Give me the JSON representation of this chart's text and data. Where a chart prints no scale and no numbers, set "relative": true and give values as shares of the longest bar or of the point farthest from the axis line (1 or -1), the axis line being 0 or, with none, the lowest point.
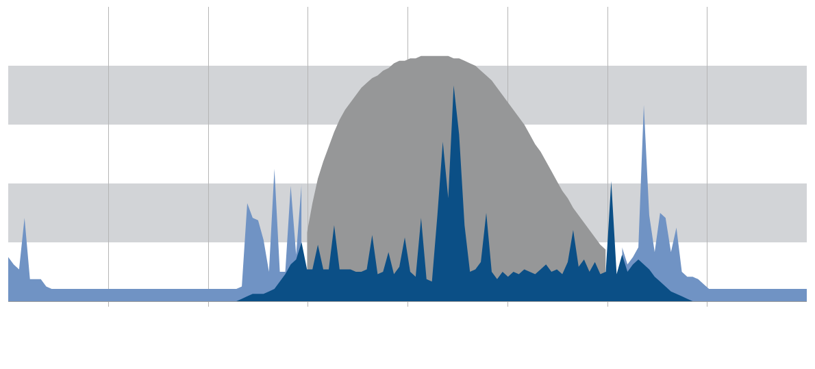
{
  "chart_data": {
    "type": "area",
    "relative": true,
    "grid": true,
    "categories": [
      null,
      null,
      null,
      null,
      null,
      null,
      null,
      null,
      null,
      null,
      null,
      null,
      null,
      null,
      null,
      null,
      null,
      null,
      null,
      null,
      null,
      null,
      null,
      null,
      null,
      null,
      null,
      null,
      null,
      null,
      null,
      null,
      null,
      null,
      null,
      null,
      null,
      null,
      null,
      null,
      null,
      null,
      null,
      null,
      null,
      null,
      null,
      null,
      null,
      null,
      null,
      null,
      null,
      null,
      null,
      null,
      null,
      null,
      null,
      null,
      null,
      null,
      null,
      null,
      null,
      null,
      null,
      null,
      null,
      null,
      null,
      null,
      null,
      null,
      null,
      null,
      null,
      null,
      null,
      null,
      null,
      null,
      null,
      null,
      null,
      null,
      null,
      null,
      null,
      null,
      null,
      null,
      null,
      null,
      null,
      null,
      null,
      null,
      null,
      null,
      null,
      null,
      null,
      null,
      null,
      null,
      null,
      null,
      null,
      null,
      null,
      null,
      null,
      null,
      null,
      null,
      null,
      null,
      null,
      null,
      null,
      null,
      null,
      null,
      null,
      null,
      null,
      null,
      null,
      null,
      null,
      null,
      null,
      null,
      null,
      null,
      null,
      null,
      null,
      null,
      null,
      null,
      null,
      null,
      null,
      null,
      null,
      null
    ],
    "series": [
      {
        "color": "#0b4f86",
        "values": [
          0,
          0,
          0,
          0,
          0,
          0,
          0,
          0,
          0,
          0,
          0,
          0,
          0,
          0,
          0,
          0,
          0,
          0,
          0,
          0,
          0,
          0,
          0,
          0,
          0,
          0,
          0,
          0,
          0,
          0,
          0,
          0,
          0,
          0,
          0,
          0,
          0,
          0,
          0,
          0,
          0,
          0,
          0,
          0.01,
          0.02,
          0.03,
          0.03,
          0.03,
          0.04,
          0.05,
          0.08,
          0.11,
          0.15,
          0.17,
          0.24,
          0.13,
          0.13,
          0.23,
          0.13,
          0.13,
          0.31,
          0.13,
          0.13,
          0.13,
          0.12,
          0.12,
          0.13,
          0.27,
          0.11,
          0.12,
          0.2,
          0.11,
          0.14,
          0.26,
          0.12,
          0.1,
          0.34,
          0.09,
          0.08,
          0.35,
          0.65,
          0.42,
          0.88,
          0.68,
          0.31,
          0.12,
          0.13,
          0.16,
          0.36,
          0.12,
          0.09,
          0.12,
          0.1,
          0.12,
          0.11,
          0.13,
          0.12,
          0.11,
          0.13,
          0.15,
          0.12,
          0.13,
          0.11,
          0.16,
          0.29,
          0.14,
          0.17,
          0.12,
          0.16,
          0.11,
          0.12,
          0.49,
          0.11,
          0.19,
          0.12,
          0.15,
          0.17,
          0.15,
          0.13,
          0.1,
          0.08,
          0.06,
          0.04,
          0.03,
          0.02,
          0.01,
          0,
          0,
          0,
          0,
          0,
          0,
          0,
          0,
          0,
          0,
          0,
          0,
          0,
          0,
          0,
          0,
          0,
          0,
          0,
          0,
          0,
          0
        ]
      },
      {
        "color": "#969798",
        "values": [
          null,
          null,
          null,
          null,
          null,
          null,
          null,
          null,
          null,
          null,
          null,
          null,
          null,
          null,
          null,
          null,
          null,
          null,
          null,
          null,
          null,
          null,
          null,
          null,
          null,
          null,
          null,
          null,
          null,
          null,
          null,
          null,
          null,
          null,
          null,
          null,
          null,
          null,
          null,
          null,
          null,
          null,
          null,
          null,
          null,
          null,
          null,
          null,
          null,
          null,
          null,
          null,
          null,
          null,
          null,
          0.28,
          0.4,
          0.5,
          0.57,
          0.63,
          0.69,
          0.74,
          0.78,
          0.81,
          0.84,
          0.87,
          0.89,
          0.91,
          0.92,
          0.94,
          0.95,
          0.97,
          0.98,
          0.98,
          0.99,
          0.99,
          1.0,
          1.0,
          1.0,
          1.0,
          1.0,
          1.0,
          0.99,
          0.99,
          0.98,
          0.97,
          0.96,
          0.94,
          0.92,
          0.9,
          0.87,
          0.84,
          0.81,
          0.78,
          0.75,
          0.72,
          0.68,
          0.64,
          0.61,
          0.57,
          0.53,
          0.49,
          0.45,
          0.42,
          0.38,
          0.35,
          0.32,
          0.29,
          0.26,
          0.23,
          0.21,
          null,
          null,
          null,
          null,
          null,
          null,
          null,
          null,
          null,
          null,
          null,
          null,
          null,
          null,
          null,
          null,
          null,
          null,
          null,
          null,
          null,
          null,
          null,
          null,
          null,
          null,
          null,
          null,
          null,
          null,
          null,
          null,
          null,
          null,
          null,
          null,
          null
        ]
      },
      {
        "color": "#7093c4",
        "values": [
          0.18,
          0.15,
          0.13,
          0.34,
          0.09,
          0.09,
          0.09,
          0.06,
          0.05,
          0.05,
          0.05,
          0.05,
          0.05,
          0.05,
          0.05,
          0.05,
          0.05,
          0.05,
          0.05,
          0.05,
          0.05,
          0.05,
          0.05,
          0.05,
          0.05,
          0.05,
          0.05,
          0.05,
          0.05,
          0.05,
          0.05,
          0.05,
          0.05,
          0.05,
          0.05,
          0.05,
          0.05,
          0.05,
          0.05,
          0.05,
          0.05,
          0.05,
          0.05,
          0.06,
          0.4,
          0.34,
          0.33,
          0.25,
          0.12,
          0.54,
          0.12,
          0.12,
          0.47,
          0.19,
          0.48,
          null,
          null,
          null,
          null,
          null,
          null,
          null,
          null,
          null,
          null,
          null,
          null,
          null,
          null,
          null,
          null,
          null,
          null,
          null,
          null,
          null,
          null,
          null,
          null,
          null,
          null,
          null,
          null,
          null,
          null,
          null,
          null,
          null,
          null,
          null,
          null,
          null,
          null,
          null,
          null,
          null,
          null,
          null,
          null,
          null,
          null,
          null,
          null,
          null,
          null,
          null,
          null,
          null,
          null,
          null,
          null,
          null,
          null,
          0.22,
          0.15,
          0.18,
          0.22,
          0.8,
          0.35,
          0.2,
          0.36,
          0.34,
          0.2,
          0.3,
          0.12,
          0.1,
          0.1,
          0.09,
          0.07,
          0.05,
          0.05,
          0.05,
          0.05,
          0.05,
          0.05,
          0.05,
          0.05,
          0.05,
          0.05,
          0.05,
          0.05,
          0.05,
          0.05,
          0.05,
          0.05,
          0.05,
          0.05,
          0.05
        ]
      }
    ]
  }
}
